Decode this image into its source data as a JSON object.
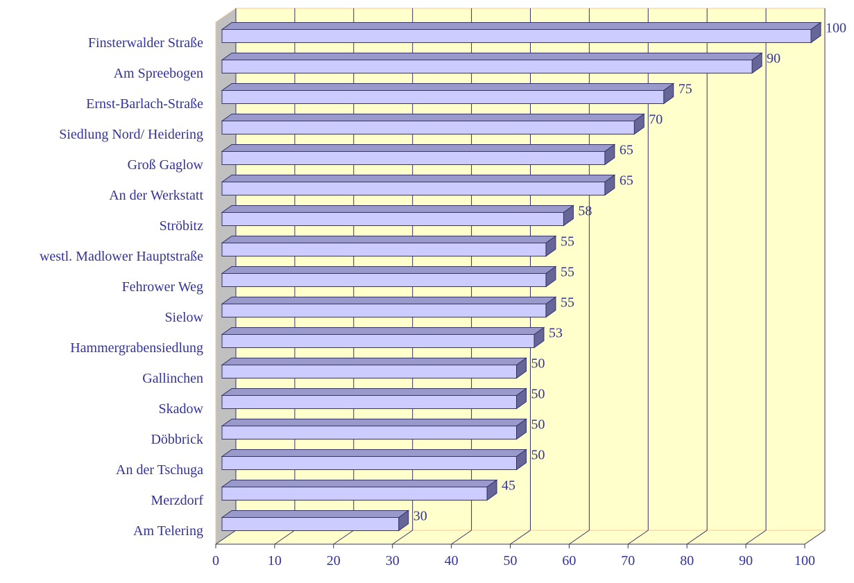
{
  "chart_data": {
    "type": "bar",
    "orientation": "horizontal",
    "categories": [
      "Finsterwalder Straße",
      "Am Spreebogen",
      "Ernst-Barlach-Straße",
      "Siedlung Nord/ Heidering",
      "Groß Gaglow",
      "An der Werkstatt",
      "Ströbitz",
      "westl. Madlower Hauptstraße",
      "Fehrower Weg",
      "Sielow",
      "Hammergrabensiedlung",
      "Gallinchen",
      "Skadow",
      "Döbbrick",
      "An der Tschuga",
      "Merzdorf",
      "Am Telering"
    ],
    "values": [
      100,
      90,
      75,
      70,
      65,
      65,
      58,
      55,
      55,
      55,
      53,
      50,
      50,
      50,
      50,
      45,
      30
    ],
    "color": "#ccccff",
    "xlim": [
      0,
      100
    ],
    "xticks": [
      0,
      10,
      20,
      30,
      40,
      50,
      60,
      70,
      80,
      90,
      100
    ],
    "grid": true
  }
}
